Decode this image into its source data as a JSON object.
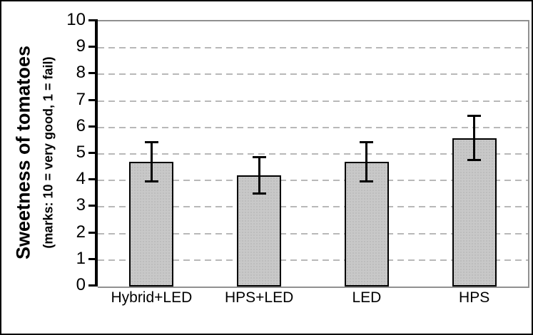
{
  "chart_data": {
    "type": "bar",
    "title": "",
    "xlabel": "",
    "ylabel": "Sweetness of tomatoes",
    "ylabel_sub": "(marks: 10 = very good, 1 = fail)",
    "categories": [
      "Hybrid+LED",
      "HPS+LED",
      "LED",
      "HPS"
    ],
    "values": [
      4.7,
      4.2,
      4.7,
      5.6
    ],
    "error_plus": [
      0.75,
      0.7,
      0.75,
      0.85
    ],
    "error_minus": [
      0.75,
      0.7,
      0.75,
      0.85
    ],
    "ylim": [
      0,
      10
    ],
    "yticks": [
      0,
      1,
      2,
      3,
      4,
      5,
      6,
      7,
      8,
      9,
      10
    ],
    "grid": "horizontal-dashed",
    "legend": "none",
    "colors": {
      "bar_fill": "#c8c8c8",
      "bar_border": "#000000",
      "error_bar": "#000000",
      "gridline": "#b8b8b8",
      "y_axis_line": "#000000",
      "plot_border": "#909090",
      "background": "#ffffff",
      "text": "#000000"
    }
  }
}
